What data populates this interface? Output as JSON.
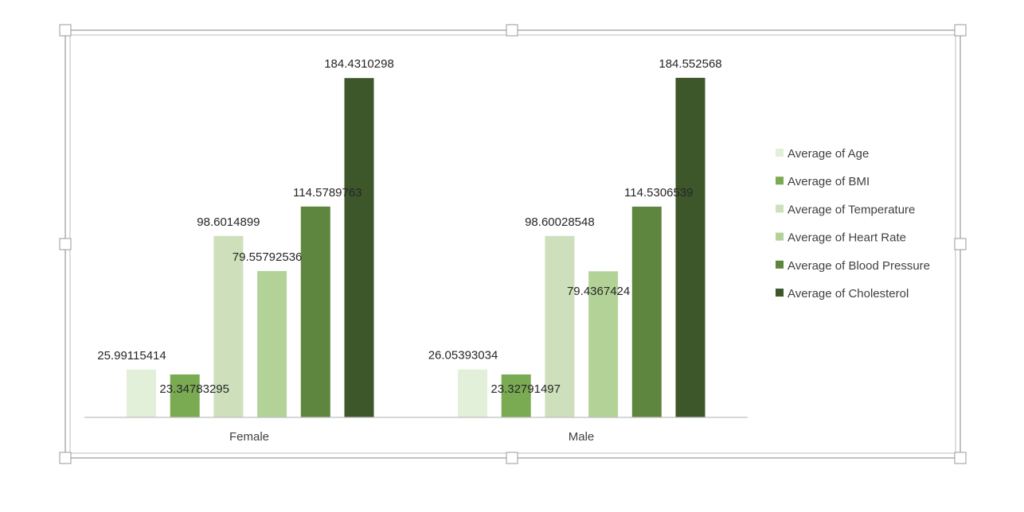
{
  "chart_data": {
    "type": "bar",
    "title": "",
    "xlabel": "",
    "ylabel": "",
    "ylim": [
      0,
      200
    ],
    "grid": false,
    "legend_position": "right",
    "categories": [
      "Female",
      "Male"
    ],
    "series": [
      {
        "name": "Average of Age",
        "color": "#e2efd9",
        "values": [
          25.99115414,
          26.05393034
        ],
        "labels": [
          "25.99115414",
          "26.05393034"
        ]
      },
      {
        "name": "Average of BMI",
        "color": "#7aab52",
        "values": [
          23.34783295,
          23.32791497
        ],
        "labels": [
          "23.34783295",
          "23.32791497"
        ]
      },
      {
        "name": "Average of Temperature",
        "color": "#cde0bb",
        "values": [
          98.6014899,
          98.60028548
        ],
        "labels": [
          "98.6014899",
          "98.60028548"
        ]
      },
      {
        "name": "Average of Heart Rate",
        "color": "#b3d298",
        "values": [
          79.55792536,
          79.4367424
        ],
        "labels": [
          "79.55792536",
          "79.4367424"
        ]
      },
      {
        "name": "Average of Blood Pressure",
        "color": "#5f863f",
        "values": [
          114.5789763,
          114.5306539
        ],
        "labels": [
          "114.5789763",
          "114.5306539"
        ]
      },
      {
        "name": "Average of Cholesterol",
        "color": "#3d562a",
        "values": [
          184.4310298,
          184.552568
        ],
        "labels": [
          "184.4310298",
          "184.552568"
        ]
      }
    ]
  }
}
